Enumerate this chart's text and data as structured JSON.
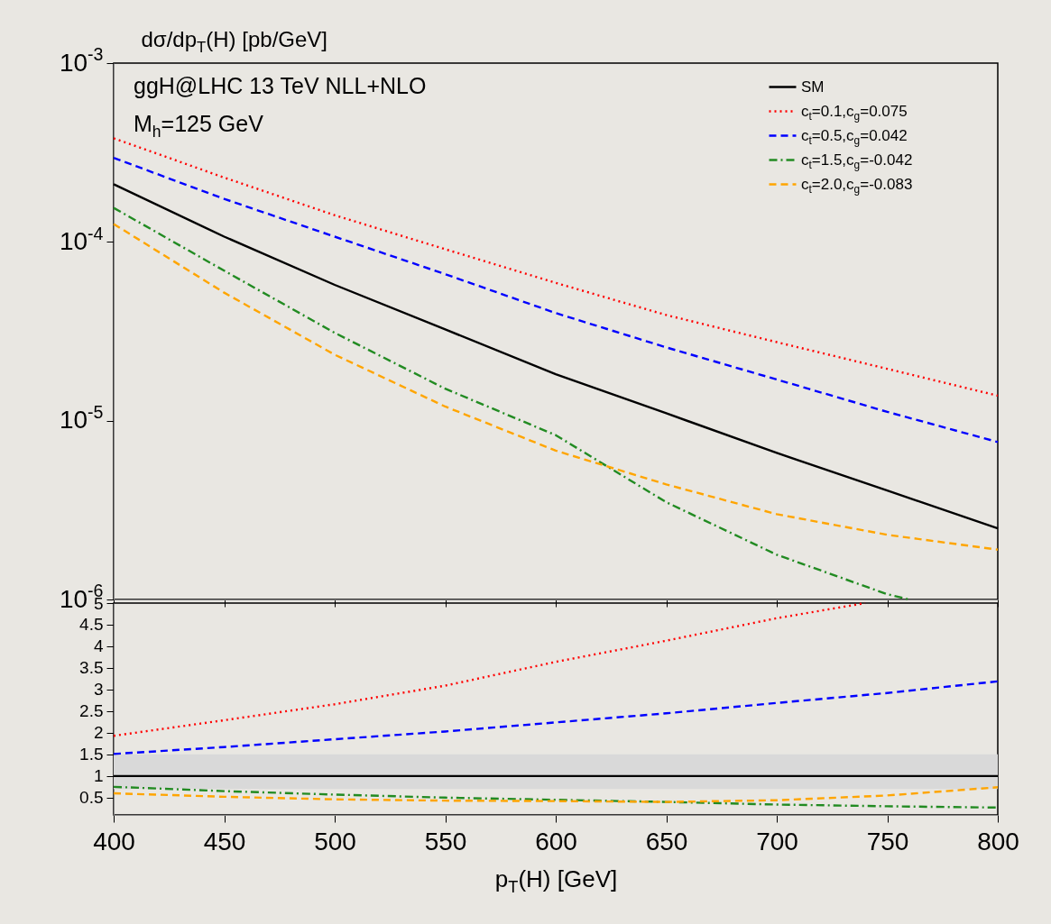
{
  "chart_data": [
    {
      "type": "line",
      "ylabel": "dσ/dp$_{T}$(H)  [pb/GeV]",
      "annotations": [
        "ggH@LHC 13 TeV  NLL+NLO",
        "M$_{h}$=125 GeV"
      ],
      "x": [
        400,
        450,
        500,
        550,
        600,
        650,
        700,
        750,
        800
      ],
      "xlim": [
        400,
        800
      ],
      "xticks": [
        400,
        450,
        500,
        550,
        600,
        650,
        700,
        750,
        800
      ],
      "ylim": [
        1e-06,
        0.001
      ],
      "yticks": [
        {
          "value": 1e-06,
          "label": "10$^{-6}$"
        },
        {
          "value": 1e-05,
          "label": "10$^{-5}$"
        },
        {
          "value": 0.0001,
          "label": "10$^{-4}$"
        },
        {
          "value": 0.001,
          "label": "10$^{-3}$"
        }
      ],
      "log": true,
      "tick_labels": "y",
      "legend": "top right",
      "series": [
        {
          "name": "SM",
          "color": "#000000",
          "line_style": "solid",
          "values": [
            0.00021,
            0.000107,
            5.75e-05,
            3.24e-05,
            1.82e-05,
            1.1e-05,
            6.6e-06,
            4.07e-06,
            2.5e-06
          ]
        },
        {
          "name": "c$_{t}$=0.1,c$_{g}$=0.075",
          "color": "#ff0000",
          "line_style": "dotted",
          "values": [
            0.00038,
            0.000229,
            0.000141,
            9.1e-05,
            5.9e-05,
            3.9e-05,
            2.75e-05,
            1.95e-05,
            1.38e-05
          ]
        },
        {
          "name": "c$_{t}$=0.5,c$_{g}$=0.042",
          "color": "#0000ff",
          "line_style": "dashed",
          "values": [
            0.000295,
            0.000174,
            0.000107,
            6.6e-05,
            4e-05,
            2.57e-05,
            1.7e-05,
            1.12e-05,
            7.6e-06
          ]
        },
        {
          "name": "c$_{t}$=1.5,c$_{g}$=-0.042",
          "color": "#228b22",
          "line_style": "dashdot",
          "x": [
            400,
            450,
            500,
            550,
            600,
            650,
            700,
            750,
            760
          ],
          "values": [
            0.000155,
            6.9e-05,
            3.1e-05,
            1.51e-05,
            8.3e-06,
            3.5e-06,
            1.78e-06,
            1.07e-06,
            1e-06
          ]
        },
        {
          "name": "c$_{t}$=2.0,c$_{g}$=-0.083",
          "color": "#ffa500",
          "line_style": "dashed",
          "values": [
            0.000126,
            5.2e-05,
            2.34e-05,
            1.2e-05,
            6.8e-06,
            4.4e-06,
            3e-06,
            2.3e-06,
            1.9e-06
          ]
        }
      ]
    },
    {
      "type": "line",
      "xlabel": "p$_{T}$(H) [GeV]",
      "x": [
        400,
        450,
        500,
        550,
        600,
        650,
        700,
        750,
        800
      ],
      "xlim": [
        400,
        800
      ],
      "xticks": [
        400,
        450,
        500,
        550,
        600,
        650,
        700,
        750,
        800
      ],
      "ylim": [
        0.1,
        5
      ],
      "yticks": [
        0.5,
        1,
        1.5,
        2,
        2.5,
        3,
        3.5,
        4,
        4.5,
        5
      ],
      "bands": [
        {
          "axis": "y",
          "from": 0.7,
          "to": 1.5,
          "color": "#d9d9d9"
        }
      ],
      "series": [
        {
          "color": "#000000",
          "line_style": "solid",
          "values": [
            1,
            1,
            1,
            1,
            1,
            1,
            1,
            1,
            1
          ]
        },
        {
          "color": "#ff0000",
          "line_style": "dotted",
          "x": [
            400,
            450,
            500,
            550,
            600,
            650,
            700,
            740
          ],
          "values": [
            1.93,
            2.29,
            2.66,
            3.09,
            3.64,
            4.13,
            4.65,
            5
          ]
        },
        {
          "color": "#0000ff",
          "line_style": "dashed",
          "values": [
            1.51,
            1.67,
            1.85,
            2.03,
            2.24,
            2.45,
            2.69,
            2.92,
            3.19
          ]
        },
        {
          "color": "#228b22",
          "line_style": "dashdot",
          "values": [
            0.75,
            0.65,
            0.57,
            0.5,
            0.45,
            0.4,
            0.34,
            0.3,
            0.27
          ]
        },
        {
          "color": "#ffa500",
          "line_style": "dashed",
          "values": [
            0.6,
            0.52,
            0.46,
            0.43,
            0.42,
            0.4,
            0.44,
            0.55,
            0.74
          ]
        }
      ]
    }
  ]
}
